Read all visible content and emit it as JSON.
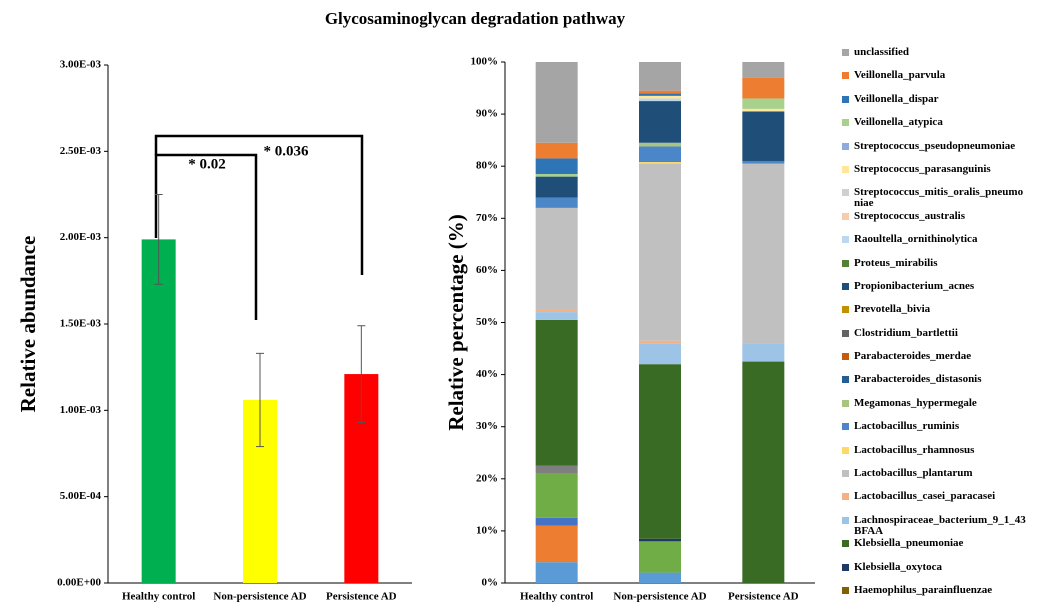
{
  "title": "Glycosaminoglycan  degradation pathway",
  "chart_data": [
    {
      "type": "bar",
      "ylabel": "Relative abundance",
      "categories": [
        "Healthy control",
        "Non-persistence AD",
        "Persistence AD"
      ],
      "values": [
        0.00199,
        0.00106,
        0.00121
      ],
      "error": [
        0.00026,
        0.00027,
        0.00028
      ],
      "colors": [
        "#00b050",
        "#ffff00",
        "#ff0000"
      ],
      "ylim": [
        0,
        0.003
      ],
      "yticks": [
        {
          "value": 0,
          "label": "0.00E+00"
        },
        {
          "value": 0.0005,
          "label": "5.00E-04"
        },
        {
          "value": 0.001,
          "label": "1.00E-03"
        },
        {
          "value": 0.0015,
          "label": "1.50E-03"
        },
        {
          "value": 0.002,
          "label": "2.00E-03"
        },
        {
          "value": 0.0025,
          "label": "2.50E-03"
        },
        {
          "value": 0.003,
          "label": "3.00E-03"
        }
      ],
      "annotations": [
        "* 0.02",
        "* 0.036"
      ]
    },
    {
      "type": "stacked_bar",
      "ylabel": "Relative percentage (%)",
      "categories": [
        "Healthy control",
        "Non-persistence AD",
        "Persistence AD"
      ],
      "ylim": [
        0,
        100
      ],
      "yticks": [
        {
          "value": 0,
          "label": "0%"
        },
        {
          "value": 10,
          "label": "10%"
        },
        {
          "value": 20,
          "label": "20%"
        },
        {
          "value": 30,
          "label": "30%"
        },
        {
          "value": 40,
          "label": "40%"
        },
        {
          "value": 50,
          "label": "50%"
        },
        {
          "value": 60,
          "label": "60%"
        },
        {
          "value": 70,
          "label": "70%"
        },
        {
          "value": 80,
          "label": "80%"
        },
        {
          "value": 90,
          "label": "90%"
        },
        {
          "value": 100,
          "label": "100%"
        }
      ],
      "series": [
        {
          "color": "#5b9bd5",
          "values": [
            4,
            2,
            0
          ]
        },
        {
          "color": "#ed7d31",
          "values": [
            7,
            0,
            0
          ]
        },
        {
          "color": "#4472c4",
          "values": [
            1.5,
            0,
            0
          ]
        },
        {
          "color": "#70ad47",
          "values": [
            8.5,
            6,
            0
          ]
        },
        {
          "color": "#7f7f7f",
          "values": [
            1.5,
            0,
            0
          ]
        },
        {
          "name": "Haemophilus_parainfluenzae",
          "color": "#806000",
          "values": [
            0,
            0,
            0
          ]
        },
        {
          "name": "Klebsiella_oxytoca",
          "color": "#203864",
          "values": [
            0,
            0.5,
            0
          ]
        },
        {
          "name": "Klebsiella_pneumoniae",
          "color": "#3a6b24",
          "values": [
            28,
            33.5,
            42.5
          ]
        },
        {
          "name": "Lachnospiraceae_bacterium_9_1_43BFAA",
          "color": "#9dc3e6",
          "values": [
            1.5,
            4,
            3.5
          ]
        },
        {
          "name": "Lactobacillus_casei_paracasei",
          "color": "#f4b183",
          "values": [
            0.5,
            0.5,
            0
          ]
        },
        {
          "name": "Lactobacillus_plantarum",
          "color": "#c0c0c0",
          "values": [
            19.5,
            34,
            34.5
          ]
        },
        {
          "name": "Lactobacillus_rhamnosus",
          "color": "#ffd966",
          "values": [
            0,
            0.3,
            0
          ]
        },
        {
          "name": "Lactobacillus_ruminis",
          "color": "#4a86c8",
          "values": [
            2,
            3,
            0.5
          ]
        },
        {
          "name": "Megamonas_hypermegale",
          "color": "#a9c47f",
          "values": [
            0,
            0.7,
            0
          ]
        },
        {
          "name": "Parabacteroides_distasonis",
          "color": "#255e91",
          "values": [
            0,
            0,
            0
          ]
        },
        {
          "name": "Parabacteroides_merdae",
          "color": "#c55a11",
          "values": [
            0,
            0,
            0
          ]
        },
        {
          "name": "Clostridium_bartlettii",
          "color": "#636363",
          "values": [
            0,
            0,
            0
          ]
        },
        {
          "name": "Prevotella_bivia",
          "color": "#bf9000",
          "values": [
            0,
            0,
            0
          ]
        },
        {
          "name": "Propionibacterium_acnes",
          "color": "#1f4e79",
          "values": [
            4,
            8,
            9.5
          ]
        },
        {
          "name": "Proteus_mirabilis",
          "color": "#548235",
          "values": [
            0,
            0,
            0
          ]
        },
        {
          "name": "Raoultella_ornithinolytica",
          "color": "#bdd7ee",
          "values": [
            0,
            0.5,
            0
          ]
        },
        {
          "name": "Streptococcus_australis",
          "color": "#f8cbad",
          "values": [
            0,
            0,
            0
          ]
        },
        {
          "name": "Streptococcus_mitis_oralis_pneumoniae",
          "color": "#d0d0d0",
          "values": [
            0,
            0,
            0
          ]
        },
        {
          "name": "Streptococcus_parasanguinis",
          "color": "#ffe699",
          "values": [
            0,
            0.5,
            0.5
          ]
        },
        {
          "name": "Streptococcus_pseudopneumoniae",
          "color": "#8faadc",
          "values": [
            0,
            0,
            0
          ]
        },
        {
          "name": "Veillonella_atypica",
          "color": "#a9d18e",
          "values": [
            0.5,
            0,
            2
          ]
        },
        {
          "name": "Veillonella_dispar",
          "color": "#2e75b6",
          "values": [
            3,
            0.5,
            0
          ]
        },
        {
          "name": "Veillonella_parvula",
          "color": "#ed7d31",
          "values": [
            3,
            0.5,
            4
          ]
        },
        {
          "name": "unclassified",
          "color": "#a5a5a5",
          "values": [
            15.5,
            5.5,
            3
          ]
        }
      ]
    }
  ]
}
